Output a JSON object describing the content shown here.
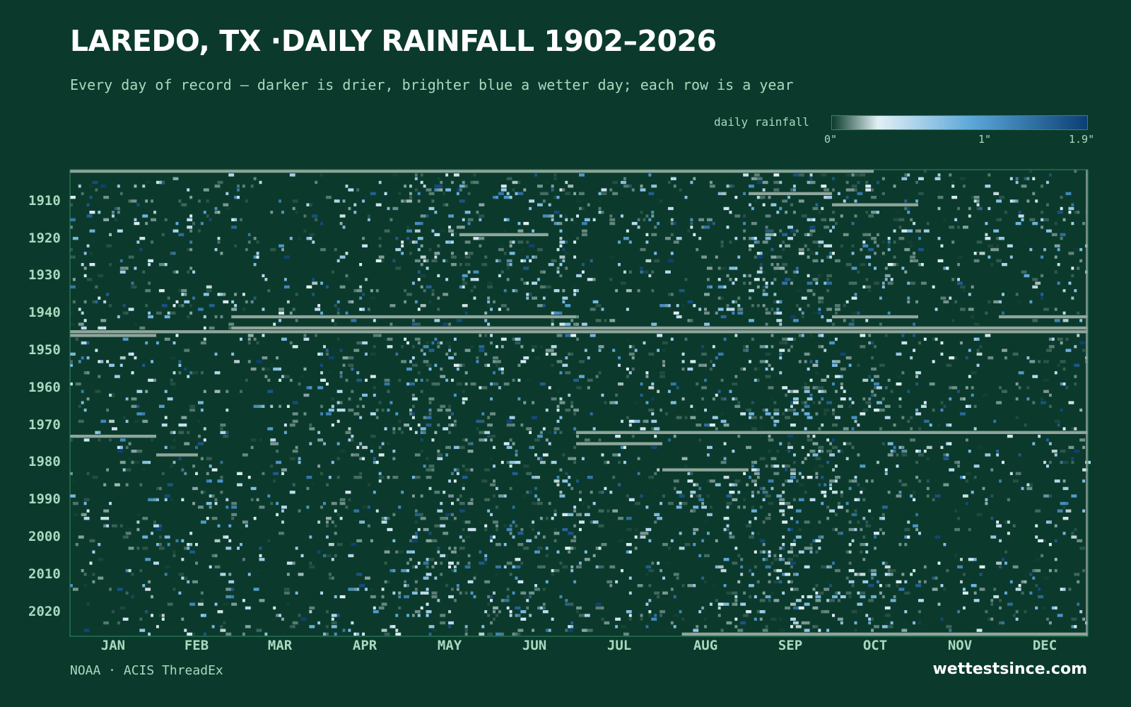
{
  "title": "LAREDO, TX ·DAILY RAINFALL 1902–2026",
  "subtitle": "Every day of record — darker is drier, brighter blue a wetter day; each row is a year",
  "legend": {
    "label": "daily rainfall",
    "ticks": [
      "0\"",
      "1\"",
      "1.9\""
    ],
    "tick_values": [
      0,
      1,
      1.9
    ]
  },
  "source": "NOAA · ACIS ThreadEx",
  "brand": "wettestsince.com",
  "colors": {
    "background": "#0b3a2c",
    "dry": "#0b3a2c",
    "light": "#e2f0f5",
    "mid_blue": "#5aa7d8",
    "dark_blue": "#0c3f74",
    "missing": "#8fa59b",
    "axis_text": "#a9d9bf"
  },
  "chart_data": {
    "type": "heatmap",
    "title": "LAREDO, TX ·DAILY RAINFALL 1902–2026",
    "x": "day of year",
    "y": "year",
    "year_range": [
      1902,
      2026
    ],
    "value_range": [
      0,
      1.9
    ],
    "unit": "inches",
    "x_tick_labels": [
      "JAN",
      "FEB",
      "MAR",
      "APR",
      "MAY",
      "JUN",
      "JUL",
      "AUG",
      "SEP",
      "OCT",
      "NOV",
      "DEC"
    ],
    "y_tick_labels": [
      "1910",
      "1920",
      "1930",
      "1940",
      "1950",
      "1960",
      "1970",
      "1980",
      "1990",
      "2000",
      "2010",
      "2020"
    ],
    "missing_data_gaps": [
      {
        "year": 1902,
        "start": "Jan 1",
        "end": "Oct 15"
      },
      {
        "year": 1908,
        "start": "Sep 1",
        "end": "Sep 30"
      },
      {
        "year": 1911,
        "start": "Oct 1",
        "end": "Oct 31"
      },
      {
        "year": 1919,
        "start": "May 20",
        "end": "Jun 20"
      },
      {
        "year": 1941,
        "start": "Feb 28",
        "end": "Jun 30"
      },
      {
        "year": 1941,
        "start": "Oct 1",
        "end": "Oct 31"
      },
      {
        "year": 1941,
        "start": "Nov 30",
        "end": "Dec 31"
      },
      {
        "year": 1944,
        "start": "Feb 28",
        "end": "Dec 31"
      },
      {
        "year": 1945,
        "start": "Jan 1",
        "end": "Dec 31"
      },
      {
        "year": 1946,
        "start": "Jan 1",
        "end": "Jan 31"
      },
      {
        "year": 1972,
        "start": "Jul 1",
        "end": "Dec 31"
      },
      {
        "year": 1973,
        "start": "Jan 1",
        "end": "Jan 31"
      },
      {
        "year": 1975,
        "start": "Jul 1",
        "end": "Jul 31"
      },
      {
        "year": 1978,
        "start": "Feb 1",
        "end": "Feb 15"
      },
      {
        "year": 1982,
        "start": "Aug 1",
        "end": "Aug 31"
      },
      {
        "year": 2026,
        "start": "Aug 8",
        "end": "Dec 31"
      }
    ]
  }
}
